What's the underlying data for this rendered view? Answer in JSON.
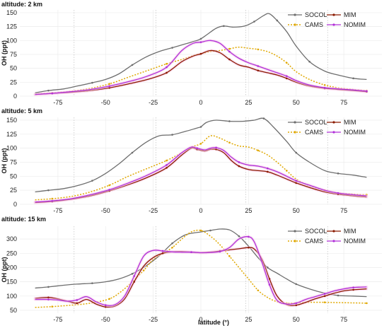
{
  "figure": {
    "xlabel": "latitude (°)",
    "ylabel": "OH (ppt)"
  },
  "series_styles": [
    {
      "name": "SOCOL",
      "color": "#6e6e6e",
      "dash": "solid"
    },
    {
      "name": "CAMS",
      "color": "#e0a800",
      "dash": "dotted"
    },
    {
      "name": "MIM",
      "color": "#8b1a00",
      "dash": "solid"
    },
    {
      "name": "NOMIM",
      "color": "#b030d8",
      "dash": "solid"
    }
  ],
  "chart_data": [
    {
      "type": "line",
      "title": "altitude: 2 km",
      "ylabel": "OH (ppt)",
      "xlabel": "",
      "xlim": [
        -95,
        95
      ],
      "ylim": [
        0,
        155
      ],
      "xticks": [
        -75,
        -50,
        -25,
        0,
        25,
        50,
        75
      ],
      "yticks": [
        0,
        25,
        50,
        75,
        100,
        125,
        150
      ],
      "vlines": [
        -66.5,
        -23.5,
        23.5,
        66.5
      ],
      "legend": "top-right",
      "grid": true,
      "series": [
        {
          "name": "SOCOL",
          "x": [
            -87,
            -80,
            -72,
            -65,
            -57,
            -50,
            -43,
            -36,
            -29,
            -22,
            -15,
            -8,
            -2,
            0,
            3,
            8,
            12,
            17,
            23,
            28,
            33,
            36,
            40,
            45,
            50,
            57,
            65,
            72,
            80,
            87
          ],
          "values": [
            6,
            10,
            13,
            18,
            24,
            30,
            40,
            56,
            70,
            80,
            87,
            94,
            100,
            103,
            110,
            122,
            126,
            124,
            126,
            134,
            145,
            148,
            136,
            116,
            90,
            62,
            45,
            38,
            32,
            30
          ]
        },
        {
          "name": "CAMS",
          "x": [
            -87,
            -78,
            -68,
            -58,
            -48,
            -38,
            -28,
            -18,
            -10,
            -3,
            0,
            5,
            10,
            15,
            20,
            25,
            30,
            35,
            40,
            45,
            50,
            57,
            65,
            72,
            80,
            87
          ],
          "values": [
            4,
            6,
            9,
            14,
            22,
            34,
            46,
            58,
            66,
            74,
            76,
            80,
            82,
            85,
            88,
            86,
            84,
            80,
            72,
            60,
            44,
            30,
            20,
            15,
            12,
            10
          ]
        },
        {
          "name": "MIM",
          "x": [
            -87,
            -78,
            -68,
            -58,
            -48,
            -38,
            -28,
            -18,
            -10,
            -4,
            0,
            5,
            10,
            15,
            20,
            25,
            30,
            35,
            40,
            45,
            50,
            57,
            65,
            72,
            80,
            87
          ],
          "values": [
            3,
            5,
            7,
            10,
            15,
            22,
            30,
            42,
            62,
            72,
            76,
            82,
            78,
            66,
            56,
            52,
            46,
            42,
            38,
            32,
            25,
            18,
            14,
            12,
            10,
            8
          ]
        },
        {
          "name": "NOMIM",
          "x": [
            -87,
            -78,
            -68,
            -58,
            -48,
            -38,
            -28,
            -18,
            -10,
            -4,
            0,
            5,
            10,
            15,
            20,
            25,
            30,
            35,
            40,
            45,
            50,
            57,
            65,
            72,
            80,
            87
          ],
          "values": [
            3,
            5,
            8,
            12,
            18,
            26,
            36,
            52,
            82,
            95,
            97,
            100,
            95,
            80,
            68,
            60,
            54,
            48,
            42,
            36,
            28,
            20,
            15,
            13,
            11,
            9
          ]
        }
      ]
    },
    {
      "type": "line",
      "title": "altitude: 5 km",
      "ylabel": "OH (ppt)",
      "xlabel": "",
      "xlim": [
        -95,
        95
      ],
      "ylim": [
        0,
        155
      ],
      "xticks": [
        -75,
        -50,
        -25,
        0,
        25,
        50,
        75
      ],
      "yticks": [
        0,
        25,
        50,
        75,
        100,
        125,
        150
      ],
      "vlines": [
        -66.5,
        -23.5,
        23.5,
        66.5
      ],
      "legend": "top-right",
      "grid": true,
      "series": [
        {
          "name": "SOCOL",
          "x": [
            -87,
            -80,
            -72,
            -65,
            -57,
            -50,
            -43,
            -36,
            -29,
            -22,
            -15,
            -8,
            -2,
            0,
            3,
            8,
            15,
            22,
            28,
            33,
            38,
            45,
            50,
            57,
            65,
            72,
            80,
            87
          ],
          "values": [
            22,
            25,
            28,
            33,
            42,
            55,
            72,
            92,
            110,
            122,
            124,
            130,
            136,
            138,
            146,
            150,
            148,
            148,
            150,
            153,
            138,
            112,
            92,
            75,
            60,
            55,
            52,
            48
          ]
        },
        {
          "name": "CAMS",
          "x": [
            -87,
            -78,
            -68,
            -58,
            -48,
            -38,
            -28,
            -18,
            -10,
            -5,
            0,
            5,
            10,
            15,
            20,
            25,
            30,
            35,
            40,
            45,
            50,
            57,
            65,
            72,
            80,
            87
          ],
          "values": [
            8,
            10,
            14,
            22,
            34,
            50,
            64,
            78,
            92,
            102,
            108,
            122,
            118,
            110,
            104,
            102,
            96,
            88,
            75,
            60,
            45,
            33,
            25,
            20,
            18,
            17
          ]
        },
        {
          "name": "MIM",
          "x": [
            -87,
            -78,
            -68,
            -58,
            -48,
            -38,
            -28,
            -18,
            -10,
            -5,
            -2,
            2,
            5,
            8,
            12,
            16,
            20,
            25,
            30,
            35,
            40,
            45,
            50,
            57,
            65,
            72,
            80,
            87
          ],
          "values": [
            3,
            5,
            9,
            15,
            24,
            35,
            48,
            65,
            88,
            100,
            98,
            95,
            98,
            98,
            92,
            78,
            68,
            62,
            60,
            58,
            52,
            45,
            38,
            30,
            22,
            18,
            15,
            13
          ]
        },
        {
          "name": "NOMIM",
          "x": [
            -87,
            -78,
            -68,
            -58,
            -48,
            -38,
            -28,
            -18,
            -10,
            -5,
            -2,
            2,
            5,
            8,
            12,
            16,
            20,
            25,
            30,
            35,
            40,
            45,
            50,
            57,
            65,
            72,
            80,
            87
          ],
          "values": [
            4,
            6,
            10,
            17,
            26,
            38,
            52,
            70,
            92,
            102,
            100,
            97,
            100,
            101,
            96,
            84,
            75,
            70,
            68,
            64,
            58,
            50,
            42,
            34,
            25,
            20,
            17,
            15
          ]
        }
      ]
    },
    {
      "type": "line",
      "title": "altitude: 15 km",
      "ylabel": "OH (ppt)",
      "xlabel": "latitude (°)",
      "xlim": [
        -95,
        95
      ],
      "ylim": [
        40,
        345
      ],
      "xticks": [
        -75,
        -50,
        -25,
        0,
        25,
        50,
        75
      ],
      "yticks": [
        50,
        100,
        150,
        200,
        250,
        300
      ],
      "vlines": [
        -66.5,
        -23.5,
        23.5,
        66.5
      ],
      "legend": "top-right",
      "grid": true,
      "series": [
        {
          "name": "SOCOL",
          "x": [
            -87,
            -80,
            -72,
            -65,
            -57,
            -50,
            -43,
            -36,
            -29,
            -22,
            -15,
            -8,
            0,
            5,
            10,
            15,
            20,
            25,
            30,
            35,
            40,
            45,
            50,
            57,
            65,
            72,
            80,
            87
          ],
          "values": [
            128,
            132,
            138,
            142,
            145,
            150,
            160,
            178,
            205,
            240,
            285,
            315,
            325,
            330,
            335,
            332,
            310,
            275,
            235,
            200,
            180,
            160,
            142,
            125,
            110,
            102,
            100,
            98
          ]
        },
        {
          "name": "CAMS",
          "x": [
            -87,
            -78,
            -68,
            -58,
            -48,
            -42,
            -36,
            -30,
            -25,
            -20,
            -15,
            -10,
            -5,
            0,
            5,
            10,
            15,
            20,
            25,
            30,
            35,
            40,
            45,
            50,
            57,
            65,
            72,
            80,
            87
          ],
          "values": [
            60,
            63,
            68,
            75,
            90,
            115,
            150,
            190,
            228,
            250,
            270,
            300,
            325,
            330,
            310,
            280,
            240,
            200,
            160,
            120,
            95,
            80,
            75,
            76,
            78,
            78,
            77,
            76,
            75
          ]
        },
        {
          "name": "MIM",
          "x": [
            -87,
            -80,
            -75,
            -70,
            -65,
            -60,
            -55,
            -50,
            -45,
            -40,
            -35,
            -30,
            -25,
            -20,
            -15,
            -10,
            -5,
            0,
            5,
            10,
            15,
            20,
            25,
            28,
            32,
            36,
            40,
            45,
            50,
            55,
            60,
            65,
            70,
            75,
            80,
            87
          ],
          "values": [
            92,
            95,
            90,
            82,
            75,
            88,
            72,
            62,
            65,
            90,
            150,
            205,
            235,
            250,
            255,
            256,
            254,
            252,
            254,
            258,
            262,
            266,
            270,
            265,
            230,
            160,
            100,
            70,
            68,
            78,
            90,
            100,
            110,
            118,
            122,
            125
          ]
        },
        {
          "name": "NOMIM",
          "x": [
            -87,
            -80,
            -75,
            -70,
            -65,
            -60,
            -55,
            -50,
            -45,
            -40,
            -35,
            -30,
            -25,
            -20,
            -15,
            -10,
            -5,
            0,
            5,
            10,
            15,
            20,
            25,
            28,
            32,
            36,
            40,
            45,
            50,
            55,
            60,
            65,
            70,
            75,
            80,
            87
          ],
          "values": [
            88,
            88,
            86,
            82,
            86,
            98,
            80,
            68,
            70,
            100,
            170,
            240,
            260,
            258,
            255,
            254,
            254,
            252,
            253,
            256,
            270,
            300,
            308,
            290,
            220,
            140,
            85,
            72,
            75,
            88,
            98,
            108,
            118,
            125,
            130,
            132
          ]
        }
      ]
    }
  ]
}
